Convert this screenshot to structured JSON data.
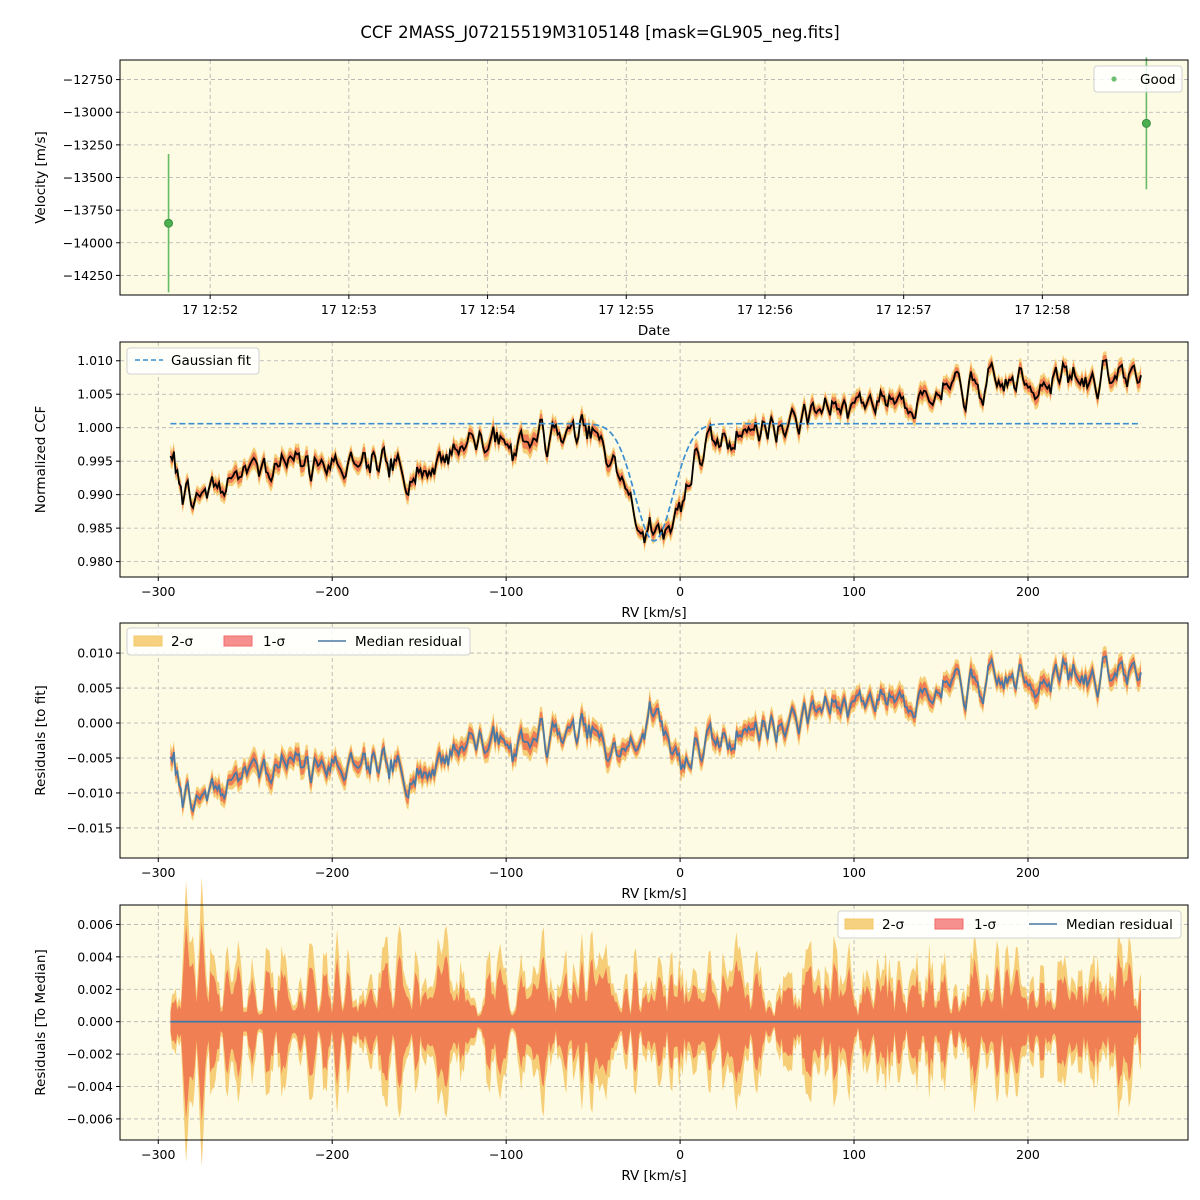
{
  "figure": {
    "title": "CCF 2MASS_J07215519M3105148 [mask=GL905_neg.fits]",
    "background": "#ffffff",
    "axes_facecolor": "#fdfbe4"
  },
  "colors": {
    "good": "#4caf50",
    "gauss": "#3b8fd0",
    "ccf": "#000000",
    "sigma2": "#f5c96a",
    "sigma1": "#f07850",
    "median": "#4a79a5"
  },
  "chart_data": [
    {
      "type": "scatter",
      "id": "velocity",
      "xlabel": "Date",
      "ylabel": "Velocity [m/s]",
      "x_unit": "minutes after 12:51",
      "xlim": [
        0.35,
        8.05
      ],
      "ylim": [
        -14400,
        -12600
      ],
      "xticks": [
        1,
        2,
        3,
        4,
        5,
        6,
        7
      ],
      "xtick_labels": [
        "17 12:52",
        "17 12:53",
        "17 12:54",
        "17 12:55",
        "17 12:56",
        "17 12:57",
        "17 12:58"
      ],
      "yticks": [
        -14250,
        -14000,
        -13750,
        -13500,
        -13250,
        -13000,
        -12750
      ],
      "ytick_labels": [
        "−14250",
        "−14000",
        "−13750",
        "−13500",
        "−13250",
        "−13000",
        "−12750"
      ],
      "legend": {
        "position": "top-right",
        "entries": [
          "Good"
        ]
      },
      "series": [
        {
          "name": "Good",
          "points": [
            {
              "x": 0.7,
              "y": -13850,
              "err": 530
            },
            {
              "x": 7.75,
              "y": -13085,
              "err": 505
            }
          ]
        }
      ]
    },
    {
      "type": "line",
      "id": "ccf",
      "xlabel": "RV [km/s]",
      "ylabel": "Normalized CCF",
      "xlim": [
        -322,
        292
      ],
      "ylim": [
        0.9777,
        1.0128
      ],
      "xticks": [
        -300,
        -200,
        -100,
        0,
        100,
        200
      ],
      "xtick_labels": [
        "−300",
        "−200",
        "−100",
        "0",
        "100",
        "200"
      ],
      "yticks": [
        0.98,
        0.985,
        0.99,
        0.995,
        1.0,
        1.005,
        1.01
      ],
      "ytick_labels": [
        "0.980",
        "0.985",
        "0.990",
        "0.995",
        "1.000",
        "1.005",
        "1.010"
      ],
      "legend": {
        "position": "top-left",
        "entries": [
          "Gaussian fit"
        ]
      },
      "rv_range": [
        -293,
        265
      ],
      "n_points": 560,
      "gaussian_fit": {
        "continuum": 1.0006,
        "depth": 0.0175,
        "center": -15,
        "sigma": 11
      },
      "ccf_trend": {
        "x": [
          -293,
          -280,
          -270,
          -250,
          -200,
          -150,
          -125,
          -100,
          -50,
          -35,
          -20,
          -10,
          0,
          10,
          30,
          60,
          100,
          150,
          200,
          265
        ],
        "y": [
          0.995,
          0.988,
          0.991,
          0.994,
          0.995,
          0.993,
          0.998,
          0.998,
          0.999,
          0.993,
          0.984,
          0.985,
          0.988,
          0.996,
          0.999,
          1.001,
          1.004,
          1.005,
          1.007,
          1.008
        ]
      },
      "noise_amplitude": 0.0022,
      "sigma1_halfwidth": 0.0009,
      "sigma2_halfwidth": 0.0015
    },
    {
      "type": "line",
      "id": "residuals_fit",
      "xlabel": "RV [km/s]",
      "ylabel": "Residuals [to fit]",
      "xlim": [
        -322,
        292
      ],
      "ylim": [
        -0.0193,
        0.0143
      ],
      "xticks": [
        -300,
        -200,
        -100,
        0,
        100,
        200
      ],
      "xtick_labels": [
        "−300",
        "−200",
        "−100",
        "0",
        "100",
        "200"
      ],
      "yticks": [
        -0.015,
        -0.01,
        -0.005,
        0.0,
        0.005,
        0.01
      ],
      "ytick_labels": [
        "−0.015",
        "−0.010",
        "−0.005",
        "0.000",
        "0.005",
        "0.010"
      ],
      "legend": {
        "position": "top-left",
        "entries": [
          "2-σ",
          "1-σ",
          "Median residual"
        ]
      }
    },
    {
      "type": "area",
      "id": "residuals_median",
      "xlabel": "RV [km/s]",
      "ylabel": "Residuals [To Median]",
      "xlim": [
        -322,
        292
      ],
      "ylim": [
        -0.0073,
        0.0072
      ],
      "xticks": [
        -300,
        -200,
        -100,
        0,
        100,
        200
      ],
      "xtick_labels": [
        "−300",
        "−200",
        "−100",
        "0",
        "100",
        "200"
      ],
      "yticks": [
        -0.006,
        -0.004,
        -0.002,
        0.0,
        0.002,
        0.004,
        0.006
      ],
      "ytick_labels": [
        "−0.006",
        "−0.004",
        "−0.002",
        "0.000",
        "0.002",
        "0.004",
        "0.006"
      ],
      "legend": {
        "position": "top-right",
        "entries": [
          "2-σ",
          "1-σ",
          "Median residual"
        ]
      },
      "median_value": 0.0,
      "envelope_amplitude": 0.0018
    }
  ]
}
